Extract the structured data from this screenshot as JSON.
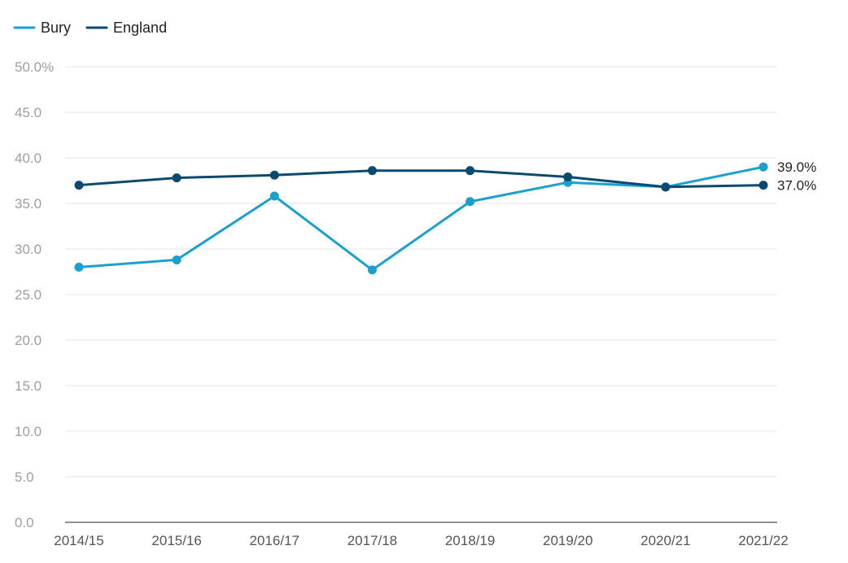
{
  "chart_data": {
    "type": "line",
    "title": "",
    "xlabel": "",
    "ylabel": "",
    "categories": [
      "2014/15",
      "2015/16",
      "2016/17",
      "2017/18",
      "2018/19",
      "2019/20",
      "2020/21",
      "2021/22"
    ],
    "series": [
      {
        "name": "Bury",
        "color": "#1aa0cf",
        "values": [
          28.0,
          28.8,
          35.8,
          27.7,
          35.2,
          37.3,
          36.8,
          39.0
        ],
        "end_label": "39.0%"
      },
      {
        "name": "England",
        "color": "#0b4a6f",
        "values": [
          37.0,
          37.8,
          38.1,
          38.6,
          38.6,
          37.9,
          36.8,
          37.0
        ],
        "end_label": "37.0%"
      }
    ],
    "ylim": [
      0,
      50
    ],
    "yticks": [
      0,
      5,
      10,
      15,
      20,
      25,
      30,
      35,
      40,
      45,
      50
    ],
    "ytick_labels": [
      "0.0",
      "5.0",
      "10.0",
      "15.0",
      "20.0",
      "25.0",
      "30.0",
      "35.0",
      "40.0",
      "45.0",
      "50.0%"
    ],
    "grid": true,
    "legend_position": "top-left",
    "gridline_color": "#e6e6e6",
    "axis_color": "#222222"
  }
}
